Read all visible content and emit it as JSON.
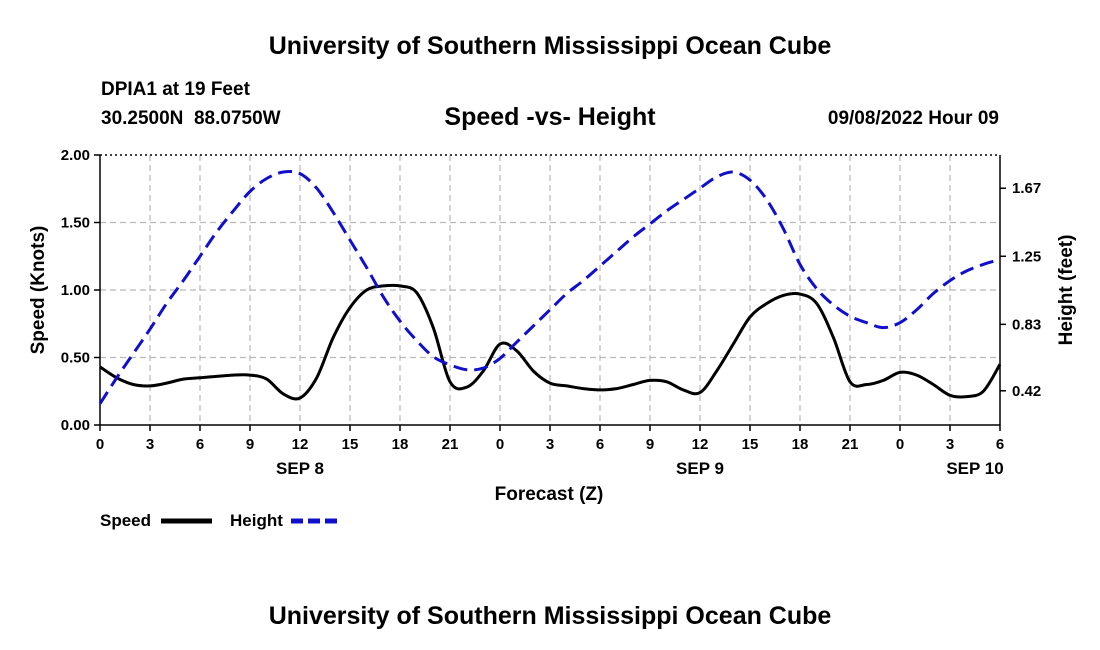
{
  "page": {
    "header_title": "University of Southern Mississippi Ocean Cube",
    "footer_title": "University of Southern Mississippi Ocean Cube"
  },
  "chart_data": {
    "type": "line",
    "title": "Speed -vs- Height",
    "station": "DPIA1 at 19 Feet",
    "location": "30.2500N  88.0750W",
    "datetime": "09/08/2022 Hour 09",
    "xlabel": "Forecast (Z)",
    "ylabel": "Speed (Knots)",
    "y2label": "Height (feet)",
    "xlim": [
      0,
      54
    ],
    "ylim": [
      0,
      2.0
    ],
    "y2lim": [
      0.2088,
      1.875
    ],
    "grid": true,
    "x_ticks": [
      0,
      3,
      6,
      9,
      12,
      15,
      18,
      21,
      24,
      27,
      30,
      33,
      36,
      39,
      42,
      45,
      48,
      51,
      54
    ],
    "x_tick_labels": [
      "0",
      "3",
      "6",
      "9",
      "12",
      "15",
      "18",
      "21",
      "0",
      "3",
      "6",
      "9",
      "12",
      "15",
      "18",
      "21",
      "0",
      "3",
      "6"
    ],
    "date_labels": [
      {
        "x": 12,
        "label": "SEP 8"
      },
      {
        "x": 36,
        "label": "SEP 9"
      },
      {
        "x": 52.5,
        "label": "SEP 10"
      }
    ],
    "y_ticks": [
      0,
      0.5,
      1.0,
      1.5,
      2.0
    ],
    "y_tick_labels": [
      "0.00",
      "0.50",
      "1.00",
      "1.50",
      "2.00"
    ],
    "y2_ticks": [
      0.42,
      0.83,
      1.25,
      1.67
    ],
    "y2_tick_labels": [
      "0.42",
      "0.83",
      "1.25",
      "1.67"
    ],
    "legend_position": "bottom-left",
    "series": [
      {
        "name": "Speed",
        "axis": "left",
        "color": "#000000",
        "style": "solid",
        "x": [
          0,
          1,
          2,
          3,
          4,
          5,
          6,
          7,
          8,
          9,
          10,
          11,
          12,
          13,
          14,
          15,
          16,
          17,
          18,
          19,
          20,
          21,
          22,
          23,
          24,
          25,
          26,
          27,
          28,
          29,
          30,
          31,
          32,
          33,
          34,
          35,
          36,
          37,
          38,
          39,
          40,
          41,
          42,
          43,
          44,
          45,
          46,
          47,
          48,
          49,
          50,
          51,
          52,
          53,
          54
        ],
        "values": [
          0.43,
          0.35,
          0.3,
          0.29,
          0.31,
          0.34,
          0.35,
          0.36,
          0.37,
          0.37,
          0.34,
          0.23,
          0.2,
          0.35,
          0.65,
          0.87,
          1.0,
          1.03,
          1.03,
          0.98,
          0.72,
          0.32,
          0.28,
          0.4,
          0.6,
          0.55,
          0.4,
          0.31,
          0.29,
          0.27,
          0.26,
          0.27,
          0.3,
          0.33,
          0.32,
          0.26,
          0.24,
          0.4,
          0.6,
          0.8,
          0.9,
          0.96,
          0.97,
          0.9,
          0.65,
          0.32,
          0.3,
          0.33,
          0.39,
          0.37,
          0.3,
          0.22,
          0.21,
          0.25,
          0.45
        ]
      },
      {
        "name": "Height",
        "axis": "right",
        "color": "#1010cc",
        "style": "dashed",
        "x": [
          0,
          1,
          2,
          3,
          4,
          5,
          6,
          7,
          8,
          9,
          10,
          11,
          12,
          13,
          14,
          15,
          16,
          17,
          18,
          19,
          20,
          21,
          22,
          23,
          24,
          25,
          26,
          27,
          28,
          29,
          30,
          31,
          32,
          33,
          34,
          35,
          36,
          37,
          38,
          39,
          40,
          41,
          42,
          43,
          44,
          45,
          46,
          47,
          48,
          49,
          50,
          51,
          52,
          53,
          54
        ],
        "values": [
          0.34,
          0.5,
          0.65,
          0.8,
          0.96,
          1.1,
          1.25,
          1.4,
          1.53,
          1.65,
          1.73,
          1.77,
          1.76,
          1.67,
          1.52,
          1.35,
          1.18,
          1.0,
          0.85,
          0.73,
          0.63,
          0.58,
          0.55,
          0.56,
          0.62,
          0.72,
          0.82,
          0.92,
          1.02,
          1.1,
          1.19,
          1.28,
          1.37,
          1.45,
          1.53,
          1.6,
          1.67,
          1.74,
          1.77,
          1.72,
          1.6,
          1.42,
          1.2,
          1.05,
          0.95,
          0.88,
          0.84,
          0.81,
          0.84,
          0.92,
          1.02,
          1.1,
          1.16,
          1.2,
          1.23
        ]
      }
    ]
  }
}
